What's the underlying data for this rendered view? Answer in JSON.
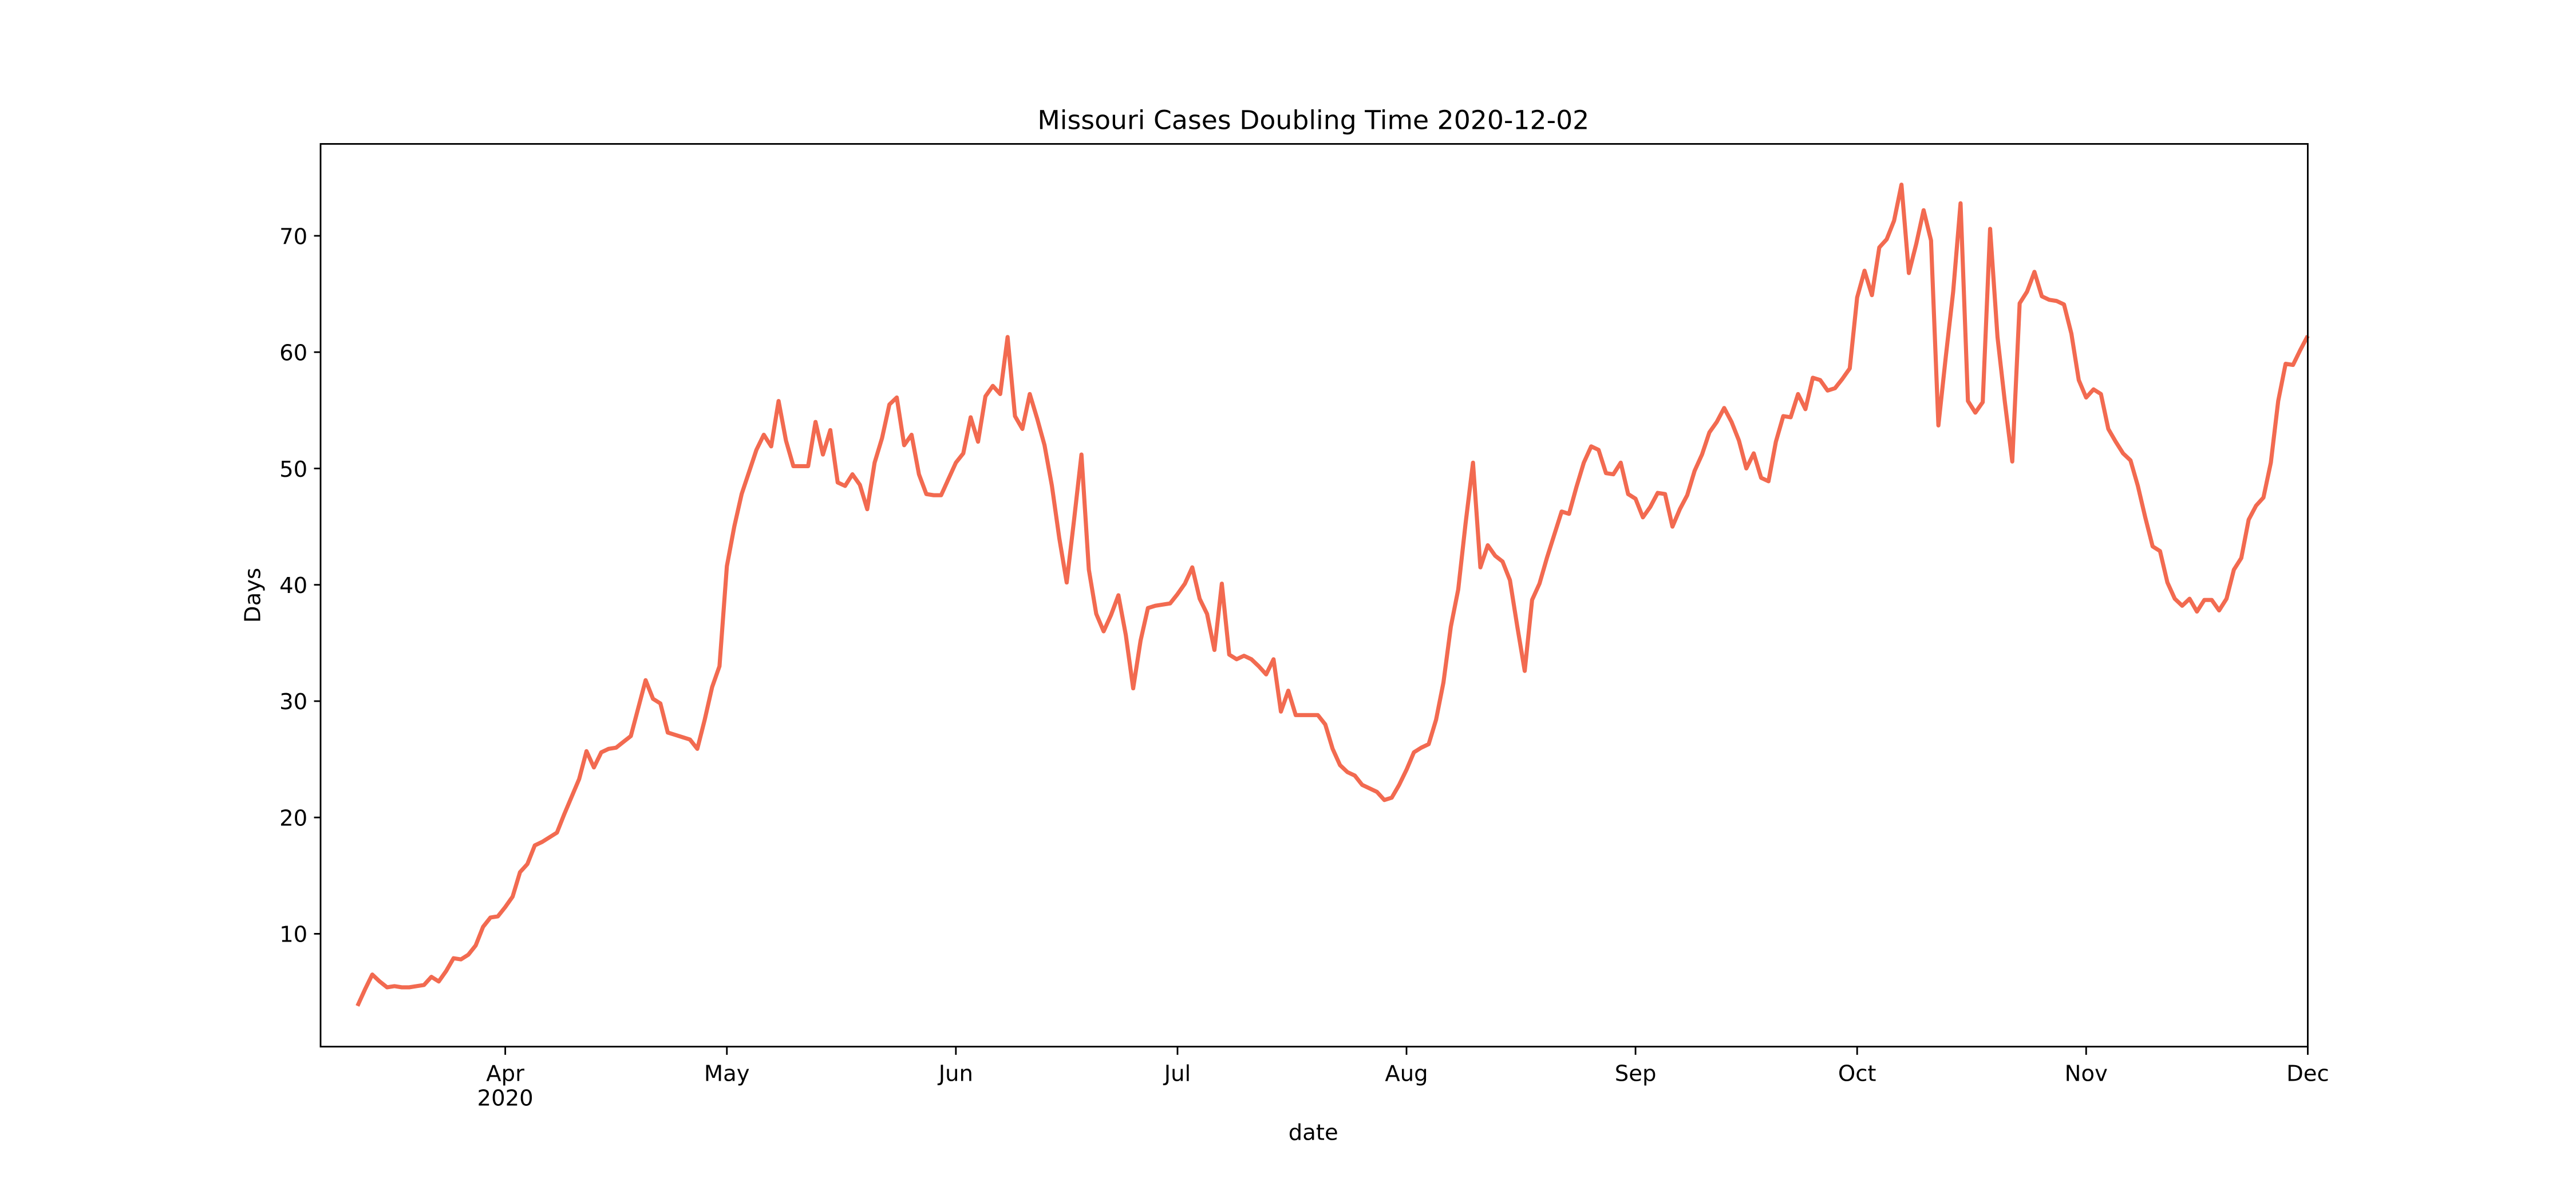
{
  "chart_data": {
    "type": "line",
    "title": "Missouri Cases Doubling Time 2020-12-02",
    "xlabel": "date",
    "ylabel": "Days",
    "x": [
      "2020-03-12",
      "2020-03-13",
      "2020-03-14",
      "2020-03-15",
      "2020-03-16",
      "2020-03-17",
      "2020-03-18",
      "2020-03-19",
      "2020-03-20",
      "2020-03-21",
      "2020-03-22",
      "2020-03-23",
      "2020-03-24",
      "2020-03-25",
      "2020-03-26",
      "2020-03-27",
      "2020-03-28",
      "2020-03-29",
      "2020-03-30",
      "2020-03-31",
      "2020-04-01",
      "2020-04-02",
      "2020-04-03",
      "2020-04-04",
      "2020-04-05",
      "2020-04-06",
      "2020-04-07",
      "2020-04-08",
      "2020-04-09",
      "2020-04-10",
      "2020-04-11",
      "2020-04-12",
      "2020-04-13",
      "2020-04-14",
      "2020-04-15",
      "2020-04-16",
      "2020-04-17",
      "2020-04-18",
      "2020-04-19",
      "2020-04-20",
      "2020-04-21",
      "2020-04-22",
      "2020-04-23",
      "2020-04-24",
      "2020-04-25",
      "2020-04-26",
      "2020-04-27",
      "2020-04-28",
      "2020-04-29",
      "2020-04-30",
      "2020-05-01",
      "2020-05-02",
      "2020-05-03",
      "2020-05-04",
      "2020-05-05",
      "2020-05-06",
      "2020-05-07",
      "2020-05-08",
      "2020-05-09",
      "2020-05-10",
      "2020-05-11",
      "2020-05-12",
      "2020-05-13",
      "2020-05-14",
      "2020-05-15",
      "2020-05-16",
      "2020-05-17",
      "2020-05-18",
      "2020-05-19",
      "2020-05-20",
      "2020-05-21",
      "2020-05-22",
      "2020-05-23",
      "2020-05-24",
      "2020-05-25",
      "2020-05-26",
      "2020-05-27",
      "2020-05-28",
      "2020-05-29",
      "2020-05-30",
      "2020-05-31",
      "2020-06-01",
      "2020-06-02",
      "2020-06-03",
      "2020-06-04",
      "2020-06-05",
      "2020-06-06",
      "2020-06-07",
      "2020-06-08",
      "2020-06-09",
      "2020-06-10",
      "2020-06-11",
      "2020-06-12",
      "2020-06-13",
      "2020-06-14",
      "2020-06-15",
      "2020-06-16",
      "2020-06-17",
      "2020-06-18",
      "2020-06-19",
      "2020-06-20",
      "2020-06-21",
      "2020-06-22",
      "2020-06-23",
      "2020-06-24",
      "2020-06-25",
      "2020-06-26",
      "2020-06-27",
      "2020-06-28",
      "2020-06-29",
      "2020-06-30",
      "2020-07-01",
      "2020-07-02",
      "2020-07-03",
      "2020-07-04",
      "2020-07-05",
      "2020-07-06",
      "2020-07-07",
      "2020-07-08",
      "2020-07-09",
      "2020-07-10",
      "2020-07-11",
      "2020-07-12",
      "2020-07-13",
      "2020-07-14",
      "2020-07-15",
      "2020-07-16",
      "2020-07-17",
      "2020-07-18",
      "2020-07-19",
      "2020-07-20",
      "2020-07-21",
      "2020-07-22",
      "2020-07-23",
      "2020-07-24",
      "2020-07-25",
      "2020-07-26",
      "2020-07-27",
      "2020-07-28",
      "2020-07-29",
      "2020-07-30",
      "2020-07-31",
      "2020-08-01",
      "2020-08-02",
      "2020-08-03",
      "2020-08-04",
      "2020-08-05",
      "2020-08-06",
      "2020-08-07",
      "2020-08-08",
      "2020-08-09",
      "2020-08-10",
      "2020-08-11",
      "2020-08-12",
      "2020-08-13",
      "2020-08-14",
      "2020-08-15",
      "2020-08-16",
      "2020-08-17",
      "2020-08-18",
      "2020-08-19",
      "2020-08-20",
      "2020-08-21",
      "2020-08-22",
      "2020-08-23",
      "2020-08-24",
      "2020-08-25",
      "2020-08-26",
      "2020-08-27",
      "2020-08-28",
      "2020-08-29",
      "2020-08-30",
      "2020-08-31",
      "2020-09-01",
      "2020-09-02",
      "2020-09-03",
      "2020-09-04",
      "2020-09-05",
      "2020-09-06",
      "2020-09-07",
      "2020-09-08",
      "2020-09-09",
      "2020-09-10",
      "2020-09-11",
      "2020-09-12",
      "2020-09-13",
      "2020-09-14",
      "2020-09-15",
      "2020-09-16",
      "2020-09-17",
      "2020-09-18",
      "2020-09-19",
      "2020-09-20",
      "2020-09-21",
      "2020-09-22",
      "2020-09-23",
      "2020-09-24",
      "2020-09-25",
      "2020-09-26",
      "2020-09-27",
      "2020-09-28",
      "2020-09-29",
      "2020-09-30",
      "2020-10-01",
      "2020-10-02",
      "2020-10-03",
      "2020-10-04",
      "2020-10-05",
      "2020-10-06",
      "2020-10-07",
      "2020-10-08",
      "2020-10-09",
      "2020-10-10",
      "2020-10-11",
      "2020-10-12",
      "2020-10-13",
      "2020-10-14",
      "2020-10-15",
      "2020-10-16",
      "2020-10-17",
      "2020-10-18",
      "2020-10-19",
      "2020-10-20",
      "2020-10-21",
      "2020-10-22",
      "2020-10-23",
      "2020-10-24",
      "2020-10-25",
      "2020-10-26",
      "2020-10-27",
      "2020-10-28",
      "2020-10-29",
      "2020-10-30",
      "2020-10-31",
      "2020-11-01",
      "2020-11-02",
      "2020-11-03",
      "2020-11-04",
      "2020-11-05",
      "2020-11-06",
      "2020-11-07",
      "2020-11-08",
      "2020-11-09",
      "2020-11-10",
      "2020-11-11",
      "2020-11-12",
      "2020-11-13",
      "2020-11-14",
      "2020-11-15",
      "2020-11-16",
      "2020-11-17",
      "2020-11-18",
      "2020-11-19",
      "2020-11-20",
      "2020-11-21",
      "2020-11-22",
      "2020-11-23",
      "2020-11-24",
      "2020-11-25",
      "2020-11-26",
      "2020-11-27",
      "2020-11-28",
      "2020-11-29",
      "2020-11-30",
      "2020-12-01"
    ],
    "series": [
      {
        "name": "Days",
        "color": "#f26a50",
        "values": [
          3.8,
          5.2,
          6.5,
          5.9,
          5.4,
          5.5,
          5.4,
          5.4,
          5.5,
          5.6,
          6.3,
          5.9,
          6.8,
          7.9,
          7.8,
          8.2,
          9.0,
          10.6,
          11.4,
          11.5,
          12.3,
          13.2,
          15.3,
          16.0,
          17.6,
          17.9,
          18.3,
          18.7,
          20.3,
          21.8,
          23.3,
          25.7,
          24.3,
          25.6,
          25.9,
          26.0,
          26.5,
          27.0,
          29.4,
          31.8,
          30.2,
          29.8,
          27.3,
          27.1,
          26.9,
          26.7,
          25.9,
          28.4,
          31.2,
          33.0,
          41.6,
          45.0,
          47.8,
          49.7,
          51.6,
          52.9,
          51.9,
          55.8,
          52.4,
          50.2,
          50.2,
          50.2,
          54.0,
          51.2,
          53.3,
          48.8,
          48.5,
          49.5,
          48.6,
          46.5,
          50.5,
          52.6,
          55.5,
          56.1,
          52.0,
          52.9,
          49.5,
          47.8,
          47.7,
          47.7,
          49.1,
          50.5,
          51.3,
          54.4,
          52.3,
          56.2,
          57.1,
          56.4,
          61.3,
          54.5,
          53.4,
          56.4,
          54.3,
          52.0,
          48.5,
          44.0,
          40.2,
          45.6,
          51.2,
          41.3,
          37.5,
          36.0,
          37.4,
          39.1,
          35.7,
          31.1,
          35.2,
          38.0,
          38.2,
          38.3,
          38.4,
          39.2,
          40.1,
          41.5,
          38.8,
          37.5,
          34.4,
          40.1,
          34.0,
          33.6,
          33.9,
          33.6,
          33.0,
          32.3,
          33.6,
          29.1,
          30.9,
          28.8,
          28.8,
          28.8,
          28.8,
          28.0,
          25.9,
          24.5,
          23.9,
          23.6,
          22.8,
          22.5,
          22.2,
          21.5,
          21.7,
          22.8,
          24.1,
          25.6,
          26.0,
          26.3,
          28.4,
          31.6,
          36.4,
          39.6,
          45.3,
          50.5,
          41.5,
          43.4,
          42.5,
          42.0,
          40.4,
          36.4,
          32.6,
          38.7,
          40.1,
          42.3,
          44.3,
          46.3,
          46.1,
          48.4,
          50.5,
          51.9,
          51.6,
          49.6,
          49.5,
          50.5,
          47.8,
          47.4,
          45.8,
          46.7,
          47.9,
          47.8,
          45.0,
          46.5,
          47.7,
          49.8,
          51.2,
          53.1,
          54.0,
          55.2,
          54.0,
          52.4,
          50.0,
          51.3,
          49.2,
          48.9,
          52.3,
          54.5,
          54.4,
          56.4,
          55.1,
          57.8,
          57.6,
          56.7,
          56.9,
          57.7,
          58.6,
          64.7,
          67.0,
          64.9,
          69.0,
          69.7,
          71.3,
          74.4,
          66.8,
          69.3,
          72.2,
          69.6,
          53.7,
          59.6,
          65.2,
          72.8,
          55.8,
          54.8,
          55.7,
          70.6,
          61.3,
          55.7,
          50.6,
          64.2,
          65.2,
          66.9,
          64.8,
          64.5,
          64.4,
          64.1,
          61.6,
          57.6,
          56.1,
          56.8,
          56.4,
          53.4,
          52.3,
          51.3,
          50.7,
          48.5,
          45.8,
          43.3,
          42.9,
          40.2,
          38.8,
          38.2,
          38.8,
          37.7,
          38.7,
          38.7,
          37.8,
          38.8,
          41.3,
          42.3,
          45.6,
          46.8,
          47.5,
          50.5,
          55.8,
          59.0,
          58.9,
          60.2,
          61.4
        ]
      }
    ],
    "xlim": [
      "2020-03-07",
      "2020-12-01"
    ],
    "xticks": [
      {
        "value": "2020-04-01",
        "label": "Apr\n2020"
      },
      {
        "value": "2020-05-01",
        "label": "May"
      },
      {
        "value": "2020-06-01",
        "label": "Jun"
      },
      {
        "value": "2020-07-01",
        "label": "Jul"
      },
      {
        "value": "2020-08-01",
        "label": "Aug"
      },
      {
        "value": "2020-09-01",
        "label": "Sep"
      },
      {
        "value": "2020-10-01",
        "label": "Oct"
      },
      {
        "value": "2020-11-01",
        "label": "Nov"
      },
      {
        "value": "2020-12-01",
        "label": "Dec"
      }
    ],
    "ylim": [
      0.3,
      77.9
    ],
    "yticks": [
      10,
      20,
      30,
      40,
      50,
      60,
      70
    ],
    "grid": false
  }
}
